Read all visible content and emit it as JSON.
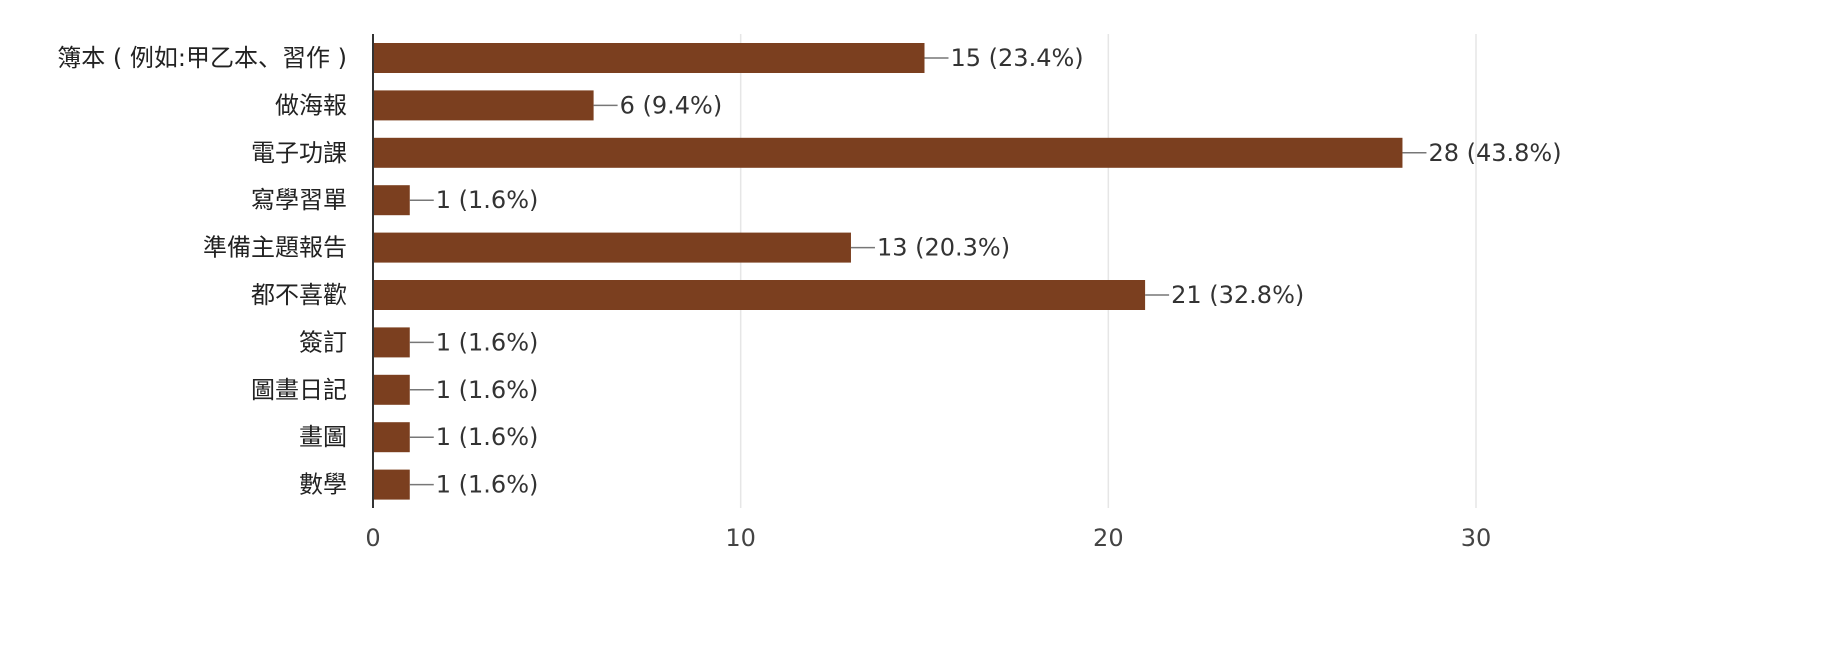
{
  "chart_data": {
    "type": "bar",
    "orientation": "horizontal",
    "categories": [
      "簿本 ( 例如:甲乙本、習作 )",
      "做海報",
      "電子功課",
      "寫學習單",
      "準備主題報告",
      "都不喜歡",
      "簽訂",
      "圖畫日記",
      "畫圖",
      "數學"
    ],
    "values": [
      15,
      6,
      28,
      1,
      13,
      21,
      1,
      1,
      1,
      1
    ],
    "value_labels": [
      "15 (23.4%)",
      "6 (9.4%)",
      "28 (43.8%)",
      "1 (1.6%)",
      "13 (20.3%)",
      "21 (32.8%)",
      "1 (1.6%)",
      "1 (1.6%)",
      "1 (1.6%)",
      "1 (1.6%)"
    ],
    "xlim": [
      0,
      30
    ],
    "xticks": [
      0,
      10,
      20,
      30
    ],
    "xtick_labels": [
      "0",
      "10",
      "20",
      "30"
    ],
    "grid": true,
    "bar_color": "#7b3f1f",
    "grid_color": "#e6e6e6",
    "axis_color": "#333333"
  }
}
